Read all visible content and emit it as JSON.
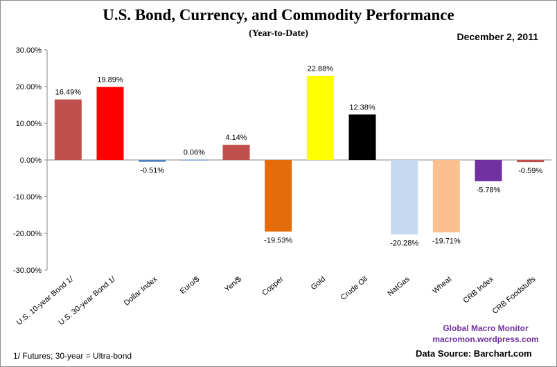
{
  "header": {
    "date": "December 2, 2011"
  },
  "credits": {
    "line1": "Global  Macro  Monitor",
    "line2": "macromon.wordpress.com",
    "data_source": "Data Source:  Barchart.com"
  },
  "footnote": "1/   Futures; 30-year = Ultra-bond",
  "chart_data": {
    "type": "bar",
    "title": "U.S. Bond, Currency, and Commodity Performance",
    "subtitle": "(Year-to-Date)",
    "categories": [
      "U.S. 10-year Bond 1/",
      "U.S. 30-year Bond 1/",
      "Dollar Index",
      "Euro/$",
      "Yen/$",
      "Copper",
      "Gold",
      "Crude Oil",
      "NatGas",
      "Wheat",
      "CRB Index",
      "CRB Foodstuffs"
    ],
    "values": [
      16.49,
      19.89,
      -0.51,
      0.06,
      4.14,
      -19.53,
      22.88,
      12.38,
      -20.28,
      -19.71,
      -5.78,
      -0.59
    ],
    "data_labels": [
      "16.49%",
      "19.89%",
      "-0.51%",
      "0.06%",
      "4.14%",
      "-19.53%",
      "22.88%",
      "12.38%",
      "-20.28%",
      "-19.71%",
      "-5.78%",
      "-0.59%"
    ],
    "colors": [
      "#c0504d",
      "#ff0000",
      "#4f81bd",
      "#4f81bd",
      "#c0504d",
      "#e46c0a",
      "#ffff00",
      "#000000",
      "#c6d9f1",
      "#fac090",
      "#7030a0",
      "#c0504d"
    ],
    "ylim": [
      -30,
      30
    ],
    "yticks": [
      30,
      20,
      10,
      0,
      -10,
      -20,
      -30
    ],
    "ytick_labels": [
      "30.00%",
      "20.00%",
      "10.00%",
      "0.00%",
      "-10.00%",
      "-20.00%",
      "-30.00%"
    ],
    "xlabel": "",
    "ylabel": "",
    "grid": false,
    "legend": "none"
  }
}
